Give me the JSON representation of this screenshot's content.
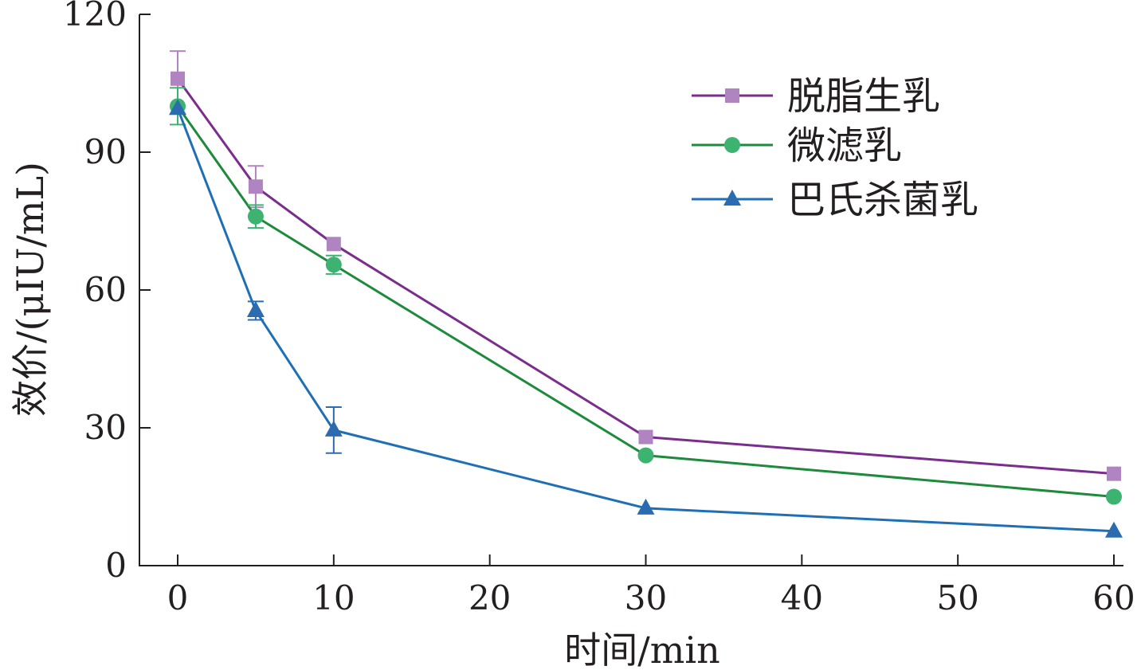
{
  "chart_data": {
    "type": "line",
    "title": "",
    "xlabel": "时间/min",
    "ylabel": "效价/(μIU/mL)",
    "xlim": [
      -2.5,
      60.5
    ],
    "ylim": [
      0,
      120
    ],
    "xticks": [
      0,
      10,
      20,
      30,
      40,
      50,
      60
    ],
    "yticks": [
      0,
      30,
      60,
      90,
      120
    ],
    "grid": false,
    "legend_position": "top-right",
    "x": [
      0,
      5,
      10,
      30,
      60
    ],
    "series": [
      {
        "name": "脱脂生乳",
        "marker": "square",
        "line_color": "#7b2d8e",
        "marker_color": "#b084c0",
        "values": [
          106,
          82.5,
          70,
          28,
          20
        ],
        "errors": [
          6,
          4.5,
          0,
          0,
          0
        ]
      },
      {
        "name": "微滤乳",
        "marker": "circle",
        "line_color": "#1e8a3c",
        "marker_color": "#3cb371",
        "values": [
          100,
          76,
          65.5,
          24,
          15
        ],
        "errors": [
          4,
          2.5,
          2,
          0,
          0
        ]
      },
      {
        "name": "巴氏杀菌乳",
        "marker": "triangle",
        "line_color": "#1f6fb5",
        "marker_color": "#2b6cb0",
        "values": [
          99.5,
          55.5,
          29.5,
          12.5,
          7.5
        ],
        "errors": [
          0,
          2,
          5,
          0,
          0
        ]
      }
    ]
  }
}
